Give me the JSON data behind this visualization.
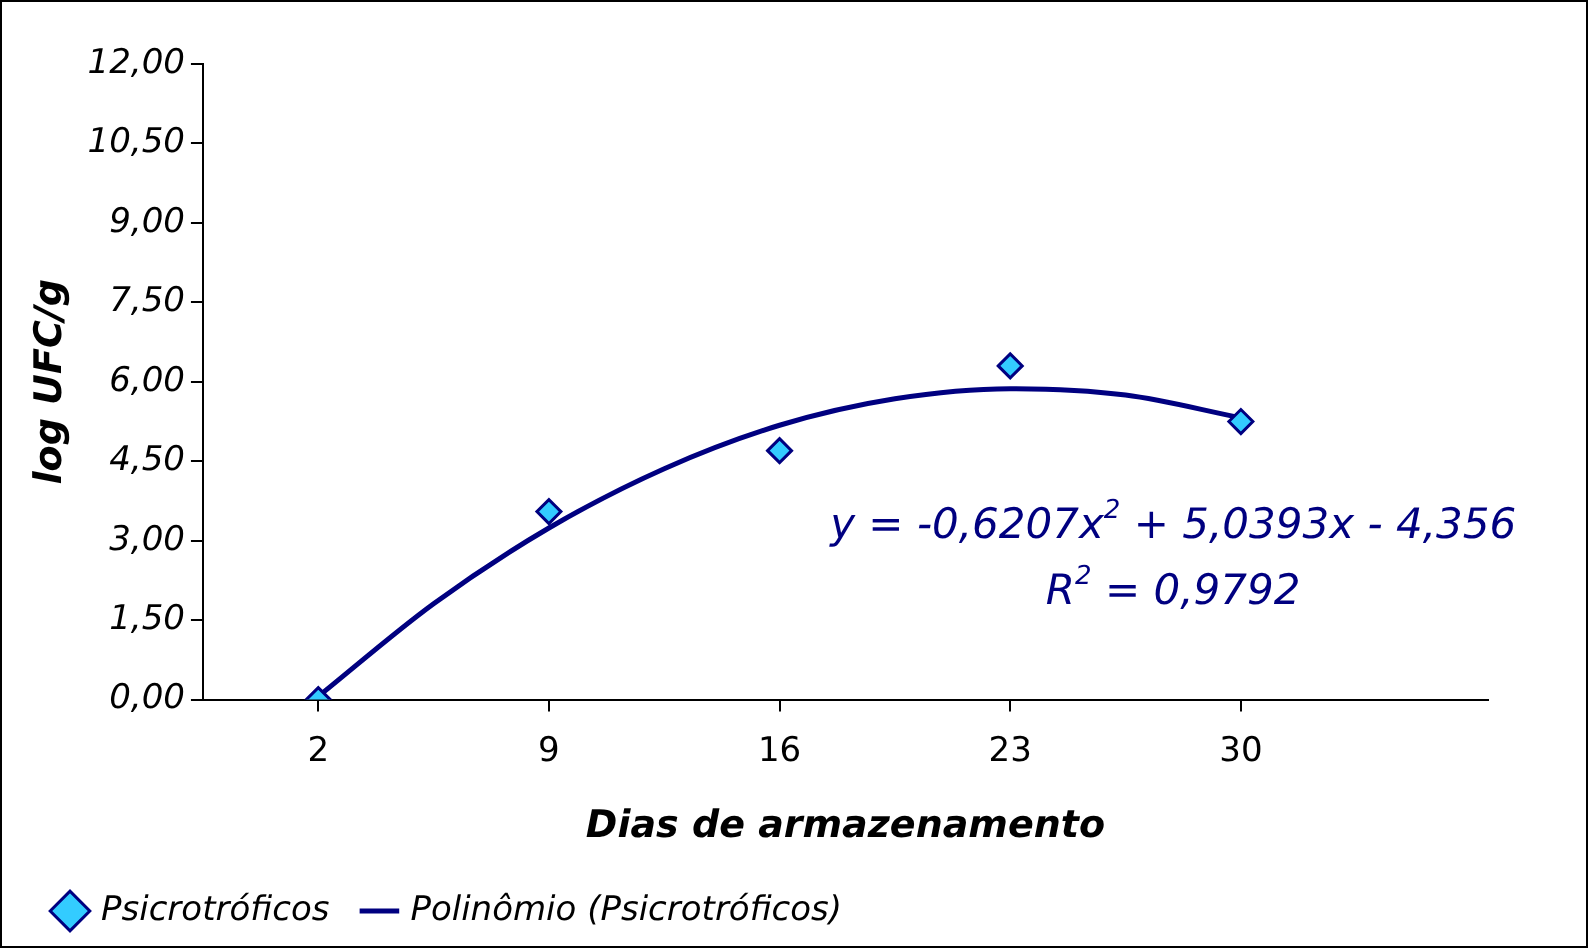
{
  "chart_data": {
    "type": "scatter",
    "xlabel": "Dias de armazenamento",
    "ylabel": "log UFC/g",
    "x": [
      2,
      9,
      16,
      23,
      30
    ],
    "series": [
      {
        "name": "Psicrotróficos",
        "type": "scatter",
        "color": "#33ccff",
        "marker": "diamond",
        "values": [
          0,
          3.55,
          4.7,
          6.3,
          5.25
        ]
      },
      {
        "name": "Polinômio (Psicrotróficos)",
        "type": "line",
        "color": "#000080",
        "marker": "none",
        "x": [
          2,
          5.5,
          9,
          12.5,
          16,
          19.5,
          23,
          26.5,
          30
        ],
        "values": [
          0.06,
          1.81,
          3.24,
          4.36,
          5.18,
          5.68,
          5.87,
          5.75,
          5.32
        ]
      }
    ],
    "xlim": [
      -1.5,
      37.5
    ],
    "xticks": [
      2,
      9,
      16,
      23,
      30
    ],
    "ylim": [
      0,
      12
    ],
    "yticks": [
      {
        "value": 0,
        "label": "0,00"
      },
      {
        "value": 1.5,
        "label": "1,50"
      },
      {
        "value": 3,
        "label": "3,00"
      },
      {
        "value": 4.5,
        "label": "4,50"
      },
      {
        "value": 6,
        "label": "6,00"
      },
      {
        "value": 7.5,
        "label": "7,50"
      },
      {
        "value": 9,
        "label": "9,00"
      },
      {
        "value": 10.5,
        "label": "10,50"
      },
      {
        "value": 12,
        "label": "12,00"
      }
    ],
    "annotations": [
      "y = -0,6207x$^{2}$ + 5,0393x - 4,356",
      "R$^{2}$ = 0,9792"
    ],
    "grid": false,
    "legend": "bottom left"
  }
}
